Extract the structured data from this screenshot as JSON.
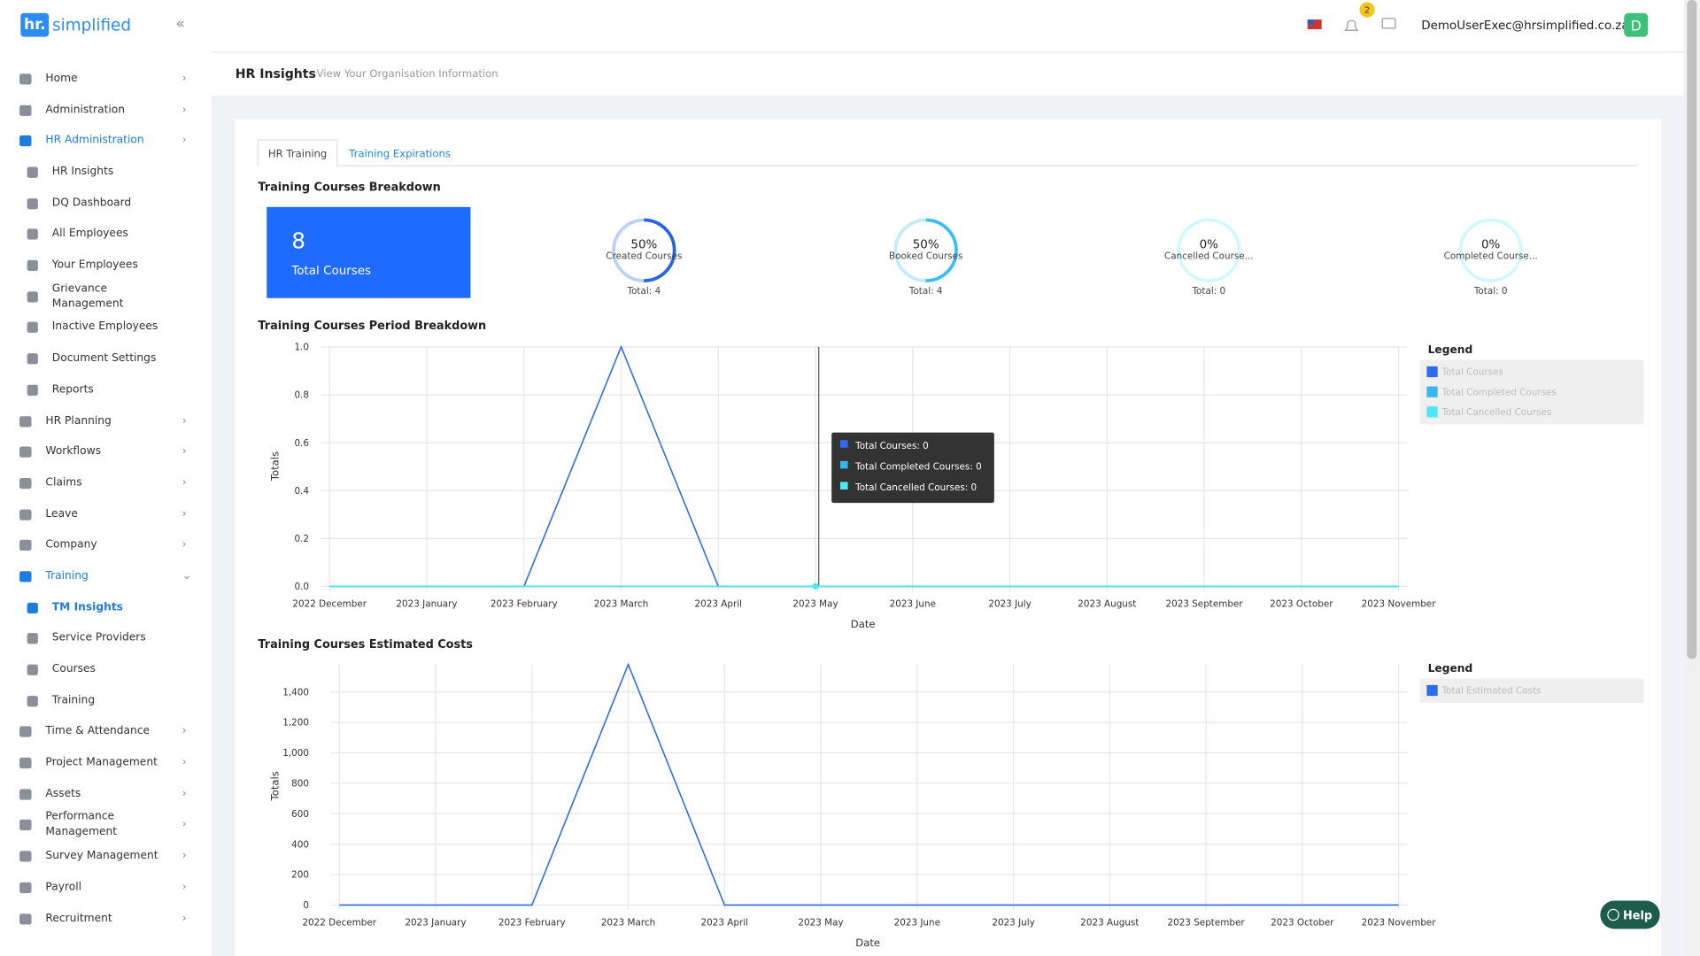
{
  "brand": {
    "mark": "hr.",
    "name": "simplified"
  },
  "sidebar": {
    "items": [
      {
        "label": "Home"
      },
      {
        "label": "Administration"
      },
      {
        "label": "HR Administration",
        "active": true
      },
      {
        "label": "HR Insights",
        "sub": true
      },
      {
        "label": "DQ Dashboard",
        "sub": true
      },
      {
        "label": "All Employees",
        "sub": true
      },
      {
        "label": "Your Employees",
        "sub": true
      },
      {
        "label": "Grievance Management",
        "sub": true
      },
      {
        "label": "Inactive Employees",
        "sub": true
      },
      {
        "label": "Document Settings",
        "sub": true
      },
      {
        "label": "Reports",
        "sub": true
      },
      {
        "label": "HR Planning"
      },
      {
        "label": "Workflows"
      },
      {
        "label": "Claims"
      },
      {
        "label": "Leave"
      },
      {
        "label": "Company"
      },
      {
        "label": "Training",
        "active": true,
        "expanded": true
      },
      {
        "label": "TM Insights",
        "sub": true,
        "active": true
      },
      {
        "label": "Service Providers",
        "sub": true
      },
      {
        "label": "Courses",
        "sub": true
      },
      {
        "label": "Training",
        "sub": true
      },
      {
        "label": "Time & Attendance"
      },
      {
        "label": "Project Management"
      },
      {
        "label": "Assets"
      },
      {
        "label": "Performance Management"
      },
      {
        "label": "Survey Management"
      },
      {
        "label": "Payroll"
      },
      {
        "label": "Recruitment"
      }
    ]
  },
  "header": {
    "badge": 2,
    "email": "DemoUserExec@hrsimplified.co.za",
    "avatar": "D"
  },
  "page": {
    "title": "HR Insights",
    "subtitle": "View Your Organisation Information"
  },
  "tabs": [
    "HR Training",
    "Training Expirations"
  ],
  "breakdown": {
    "title": "Training Courses Breakdown",
    "total": {
      "value": 8,
      "label": "Total Courses"
    },
    "gauges": [
      {
        "value": 50,
        "label": "50%",
        "name": "Created Courses",
        "total": "Total: 4",
        "color": "#2563eb"
      },
      {
        "value": 50,
        "label": "50%",
        "name": "Booked Courses",
        "total": "Total: 4",
        "color": "#38bdf8"
      },
      {
        "value": 0,
        "label": "0%",
        "name": "Cancelled Course...",
        "total": "Total: 0",
        "color": "#67e8f9"
      },
      {
        "value": 0,
        "label": "0%",
        "name": "Completed Course...",
        "total": "Total: 0",
        "color": "#67e8f9"
      }
    ]
  },
  "chart_data": [
    {
      "type": "line",
      "title": "Training Courses Period Breakdown",
      "x_label": "Date",
      "y_label": "Totals",
      "categories": [
        "2022 December",
        "2023 January",
        "2023 February",
        "2023 March",
        "2023 April",
        "2023 May",
        "2023 June",
        "2023 July",
        "2023 August",
        "2023 September",
        "2023 October",
        "2023 November"
      ],
      "series": [
        {
          "name": "Total Courses",
          "color": "#2f6bf0",
          "values": [
            0,
            0,
            0,
            1,
            0,
            0,
            0,
            0,
            0,
            0,
            0,
            0
          ]
        },
        {
          "name": "Total Completed Courses",
          "color": "#38b6f0",
          "values": [
            0,
            0,
            0,
            0,
            0,
            0,
            0,
            0,
            0,
            0,
            0,
            0
          ]
        },
        {
          "name": "Total Cancelled Courses",
          "color": "#4de8f0",
          "values": [
            0,
            0,
            0,
            0,
            0,
            0,
            0,
            0,
            0,
            0,
            0,
            0
          ]
        }
      ],
      "ylim": [
        0,
        1
      ],
      "yticks": [
        {
          "value": 0,
          "label": "0.0"
        },
        0.2,
        0.4,
        0.6,
        0.8,
        {
          "value": 1,
          "label": "1.0"
        }
      ],
      "grid": true,
      "legend_title": "Legend",
      "tooltip": [
        "Total Courses: 0",
        "Total Completed Courses: 0",
        "Total Cancelled Courses: 0"
      ]
    },
    {
      "type": "line",
      "title": "Training Courses Estimated Costs",
      "x_label": "Date",
      "y_label": "Totals",
      "categories": [
        "2022 December",
        "2023 January",
        "2023 February",
        "2023 March",
        "2023 April",
        "2023 May",
        "2023 June",
        "2023 July",
        "2023 August",
        "2023 September",
        "2023 October",
        "2023 November"
      ],
      "series": [
        {
          "name": "Total Estimated Costs",
          "color": "#2f6bf0",
          "values": [
            0,
            0,
            0,
            1580,
            0,
            0,
            0,
            0,
            0,
            0,
            0,
            0
          ]
        }
      ],
      "ylim": [
        0,
        1580
      ],
      "yticks": [
        0,
        200,
        400,
        600,
        800,
        {
          "value": 1000,
          "label": "1,000"
        },
        {
          "value": 1200,
          "label": "1,200"
        },
        {
          "value": 1400,
          "label": "1,400"
        }
      ],
      "grid": true,
      "legend_title": "Legend"
    }
  ],
  "help": "Help"
}
